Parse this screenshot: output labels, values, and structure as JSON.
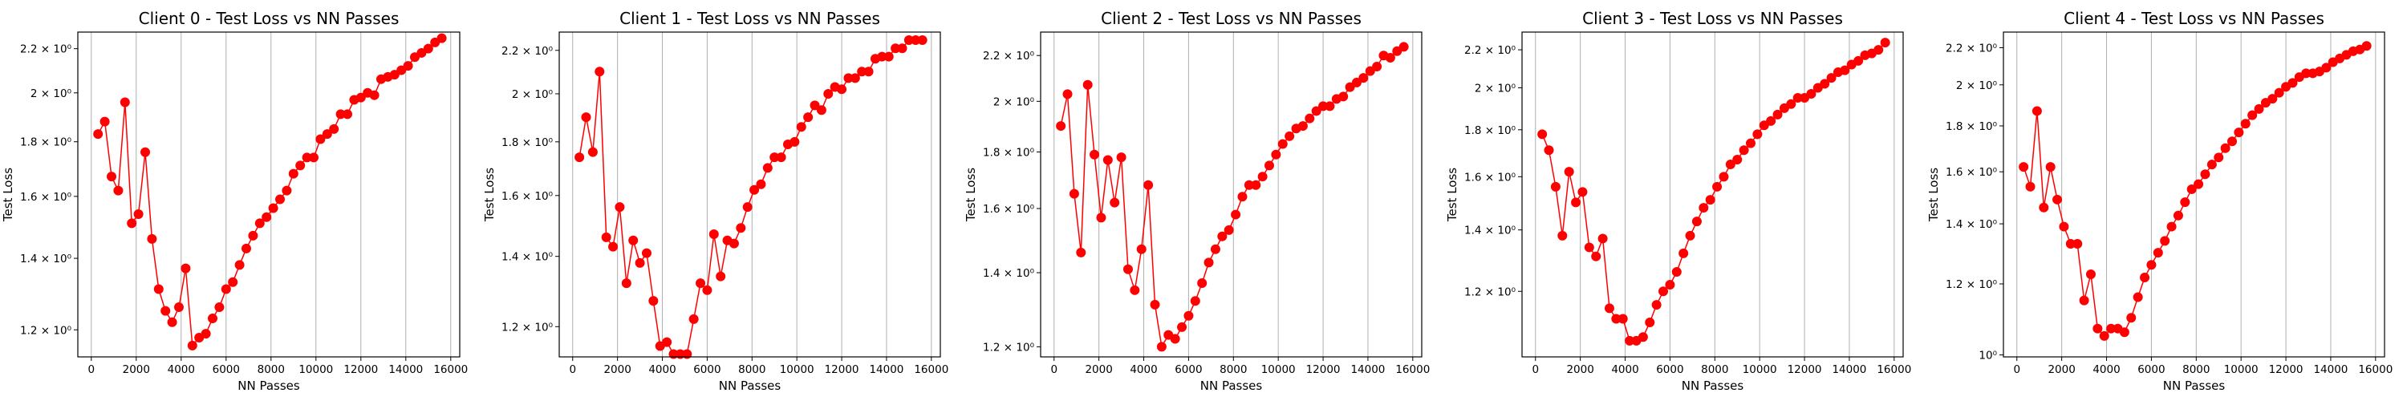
{
  "chart_data": [
    {
      "type": "line",
      "title": "Client 0 - Test Loss vs NN Passes",
      "xlabel": "NN Passes",
      "ylabel": "Test Loss",
      "yscale": "log",
      "grid": "x-only",
      "xlim": [
        -600,
        16400
      ],
      "ylim": [
        1.132,
        2.28
      ],
      "xticks": [
        0,
        2000,
        4000,
        6000,
        8000,
        10000,
        12000,
        14000,
        16000
      ],
      "xtick_labels": [
        "0",
        "2000",
        "4000",
        "6000",
        "8000",
        "10000",
        "12000",
        "14000",
        "16000"
      ],
      "yticks": [
        1.2,
        1.4,
        1.6,
        1.8,
        2.0,
        2.2
      ],
      "ytick_labels": [
        "1.2 × 10⁰",
        "1.4 × 10⁰",
        "1.6 × 10⁰",
        "1.8 × 10⁰",
        "2 × 10⁰",
        "2.2 × 10⁰"
      ],
      "series": [
        {
          "color": "#ff0000",
          "x": [
            300,
            600,
            900,
            1200,
            1500,
            1800,
            2100,
            2400,
            2700,
            3000,
            3300,
            3600,
            3900,
            4200,
            4500,
            4800,
            5100,
            5400,
            5700,
            6000,
            6300,
            6600,
            6900,
            7200,
            7500,
            7800,
            8100,
            8400,
            8700,
            9000,
            9300,
            9600,
            9900,
            10200,
            10500,
            10800,
            11100,
            11400,
            11700,
            12000,
            12300,
            12600,
            12900,
            13200,
            13500,
            13800,
            14100,
            14400,
            14700,
            15000,
            15300,
            15600
          ],
          "y": [
            1.83,
            1.88,
            1.67,
            1.62,
            1.96,
            1.51,
            1.54,
            1.76,
            1.46,
            1.31,
            1.25,
            1.22,
            1.26,
            1.37,
            1.16,
            1.18,
            1.19,
            1.23,
            1.26,
            1.31,
            1.33,
            1.38,
            1.43,
            1.47,
            1.51,
            1.53,
            1.56,
            1.59,
            1.62,
            1.68,
            1.71,
            1.74,
            1.74,
            1.81,
            1.83,
            1.85,
            1.91,
            1.91,
            1.97,
            1.98,
            2.0,
            1.99,
            2.06,
            2.07,
            2.08,
            2.1,
            2.12,
            2.16,
            2.18,
            2.2,
            2.23,
            2.25
          ]
        }
      ]
    },
    {
      "type": "line",
      "title": "Client 1 - Test Loss vs NN Passes",
      "xlabel": "NN Passes",
      "ylabel": "Test Loss",
      "yscale": "log",
      "grid": "x-only",
      "xlim": [
        -600,
        16400
      ],
      "ylim": [
        1.123,
        2.29
      ],
      "xticks": [
        0,
        2000,
        4000,
        6000,
        8000,
        10000,
        12000,
        14000,
        16000
      ],
      "xtick_labels": [
        "0",
        "2000",
        "4000",
        "6000",
        "8000",
        "10000",
        "12000",
        "14000",
        "16000"
      ],
      "yticks": [
        1.2,
        1.4,
        1.6,
        1.8,
        2.0,
        2.2
      ],
      "ytick_labels": [
        "1.2 × 10⁰",
        "1.4 × 10⁰",
        "1.6 × 10⁰",
        "1.8 × 10⁰",
        "2 × 10⁰",
        "2.2 × 10⁰"
      ],
      "series": [
        {
          "color": "#ff0000",
          "x": [
            300,
            600,
            900,
            1200,
            1500,
            1800,
            2100,
            2400,
            2700,
            3000,
            3300,
            3600,
            3900,
            4200,
            4500,
            4800,
            5100,
            5400,
            5700,
            6000,
            6300,
            6600,
            6900,
            7200,
            7500,
            7800,
            8100,
            8400,
            8700,
            9000,
            9300,
            9600,
            9900,
            10200,
            10500,
            10800,
            11100,
            11400,
            11700,
            12000,
            12300,
            12600,
            12900,
            13200,
            13500,
            13800,
            14100,
            14400,
            14700,
            15000,
            15300,
            15600
          ],
          "y": [
            1.74,
            1.9,
            1.76,
            2.1,
            1.46,
            1.43,
            1.56,
            1.32,
            1.45,
            1.38,
            1.41,
            1.27,
            1.15,
            1.16,
            1.13,
            1.13,
            1.13,
            1.22,
            1.32,
            1.3,
            1.47,
            1.34,
            1.45,
            1.44,
            1.49,
            1.56,
            1.62,
            1.64,
            1.7,
            1.74,
            1.74,
            1.79,
            1.8,
            1.86,
            1.9,
            1.95,
            1.93,
            2.0,
            2.03,
            2.02,
            2.07,
            2.07,
            2.1,
            2.1,
            2.16,
            2.17,
            2.17,
            2.21,
            2.21,
            2.25,
            2.25,
            2.25
          ]
        }
      ]
    },
    {
      "type": "line",
      "title": "Client 2 - Test Loss vs NN Passes",
      "xlabel": "NN Passes",
      "ylabel": "Test Loss",
      "yscale": "log",
      "grid": "x-only",
      "xlim": [
        -600,
        16400
      ],
      "ylim": [
        1.175,
        2.31
      ],
      "xticks": [
        0,
        2000,
        4000,
        6000,
        8000,
        10000,
        12000,
        14000,
        16000
      ],
      "xtick_labels": [
        "0",
        "2000",
        "4000",
        "6000",
        "8000",
        "10000",
        "12000",
        "14000",
        "16000"
      ],
      "yticks": [
        1.2,
        1.4,
        1.6,
        1.8,
        2.0,
        2.2
      ],
      "ytick_labels": [
        "1.2 × 10⁰",
        "1.4 × 10⁰",
        "1.6 × 10⁰",
        "1.8 × 10⁰",
        "2 × 10⁰",
        "2.2 × 10⁰"
      ],
      "series": [
        {
          "color": "#ff0000",
          "x": [
            300,
            600,
            900,
            1200,
            1500,
            1800,
            2100,
            2400,
            2700,
            3000,
            3300,
            3600,
            3900,
            4200,
            4500,
            4800,
            5100,
            5400,
            5700,
            6000,
            6300,
            6600,
            6900,
            7200,
            7500,
            7800,
            8100,
            8400,
            8700,
            9000,
            9300,
            9600,
            9900,
            10200,
            10500,
            10800,
            11100,
            11400,
            11700,
            12000,
            12300,
            12600,
            12900,
            13200,
            13500,
            13800,
            14100,
            14400,
            14700,
            15000,
            15300,
            15600
          ],
          "y": [
            1.9,
            2.03,
            1.65,
            1.46,
            2.07,
            1.79,
            1.57,
            1.77,
            1.62,
            1.78,
            1.41,
            1.35,
            1.47,
            1.68,
            1.31,
            1.2,
            1.23,
            1.22,
            1.25,
            1.28,
            1.32,
            1.37,
            1.43,
            1.47,
            1.51,
            1.53,
            1.58,
            1.64,
            1.68,
            1.68,
            1.71,
            1.75,
            1.79,
            1.83,
            1.86,
            1.89,
            1.9,
            1.93,
            1.96,
            1.98,
            1.98,
            2.01,
            2.02,
            2.06,
            2.08,
            2.1,
            2.13,
            2.15,
            2.2,
            2.19,
            2.22,
            2.24
          ]
        }
      ]
    },
    {
      "type": "line",
      "title": "Client 3 - Test Loss vs NN Passes",
      "xlabel": "NN Passes",
      "ylabel": "Test Loss",
      "yscale": "log",
      "grid": "x-only",
      "xlim": [
        -600,
        16400
      ],
      "ylim": [
        1.018,
        2.3
      ],
      "xticks": [
        0,
        2000,
        4000,
        6000,
        8000,
        10000,
        12000,
        14000,
        16000
      ],
      "xtick_labels": [
        "0",
        "2000",
        "4000",
        "6000",
        "8000",
        "10000",
        "12000",
        "14000",
        "16000"
      ],
      "yticks": [
        1.2,
        1.4,
        1.6,
        1.8,
        2.0,
        2.2
      ],
      "ytick_labels": [
        "1.2 × 10⁰",
        "1.4 × 10⁰",
        "1.6 × 10⁰",
        "1.8 × 10⁰",
        "2 × 10⁰",
        "2.2 × 10⁰"
      ],
      "series": [
        {
          "color": "#ff0000",
          "x": [
            300,
            600,
            900,
            1200,
            1500,
            1800,
            2100,
            2400,
            2700,
            3000,
            3300,
            3600,
            3900,
            4200,
            4500,
            4800,
            5100,
            5400,
            5700,
            6000,
            6300,
            6600,
            6900,
            7200,
            7500,
            7800,
            8100,
            8400,
            8700,
            9000,
            9300,
            9600,
            9900,
            10200,
            10500,
            10800,
            11100,
            11400,
            11700,
            12000,
            12300,
            12600,
            12900,
            13200,
            13500,
            13800,
            14100,
            14400,
            14700,
            15000,
            15300,
            15600
          ],
          "y": [
            1.78,
            1.71,
            1.56,
            1.38,
            1.62,
            1.5,
            1.54,
            1.34,
            1.31,
            1.37,
            1.15,
            1.12,
            1.12,
            1.06,
            1.06,
            1.07,
            1.11,
            1.16,
            1.2,
            1.22,
            1.26,
            1.32,
            1.38,
            1.43,
            1.48,
            1.51,
            1.56,
            1.6,
            1.65,
            1.67,
            1.71,
            1.74,
            1.78,
            1.82,
            1.84,
            1.87,
            1.9,
            1.92,
            1.95,
            1.95,
            1.97,
            2.0,
            2.02,
            2.05,
            2.08,
            2.09,
            2.12,
            2.14,
            2.17,
            2.18,
            2.2,
            2.24
          ]
        }
      ]
    },
    {
      "type": "line",
      "title": "Client 4 - Test Loss vs NN Passes",
      "xlabel": "NN Passes",
      "ylabel": "Test Loss",
      "yscale": "log",
      "grid": "x-only",
      "xlim": [
        -600,
        16400
      ],
      "ylim": [
        0.995,
        2.29
      ],
      "xticks": [
        0,
        2000,
        4000,
        6000,
        8000,
        10000,
        12000,
        14000,
        16000
      ],
      "xtick_labels": [
        "0",
        "2000",
        "4000",
        "6000",
        "8000",
        "10000",
        "12000",
        "14000",
        "16000"
      ],
      "yticks": [
        1.0,
        1.2,
        1.4,
        1.6,
        1.8,
        2.0,
        2.2
      ],
      "ytick_labels": [
        "10⁰",
        "1.2 × 10⁰",
        "1.4 × 10⁰",
        "1.6 × 10⁰",
        "1.8 × 10⁰",
        "2 × 10⁰",
        "2.2 × 10⁰"
      ],
      "series": [
        {
          "color": "#ff0000",
          "x": [
            300,
            600,
            900,
            1200,
            1500,
            1800,
            2100,
            2400,
            2700,
            3000,
            3300,
            3600,
            3900,
            4200,
            4500,
            4800,
            5100,
            5400,
            5700,
            6000,
            6300,
            6600,
            6900,
            7200,
            7500,
            7800,
            8100,
            8400,
            8700,
            9000,
            9300,
            9600,
            9900,
            10200,
            10500,
            10800,
            11100,
            11400,
            11700,
            12000,
            12300,
            12600,
            12900,
            13200,
            13500,
            13800,
            14100,
            14400,
            14700,
            15000,
            15300,
            15600
          ],
          "y": [
            1.62,
            1.54,
            1.87,
            1.46,
            1.62,
            1.49,
            1.39,
            1.33,
            1.33,
            1.15,
            1.23,
            1.07,
            1.05,
            1.07,
            1.07,
            1.06,
            1.1,
            1.16,
            1.22,
            1.26,
            1.3,
            1.34,
            1.39,
            1.43,
            1.48,
            1.53,
            1.55,
            1.59,
            1.63,
            1.66,
            1.7,
            1.73,
            1.77,
            1.81,
            1.85,
            1.88,
            1.91,
            1.93,
            1.96,
            1.99,
            2.01,
            2.04,
            2.06,
            2.06,
            2.07,
            2.09,
            2.12,
            2.14,
            2.16,
            2.18,
            2.19,
            2.21
          ]
        }
      ]
    }
  ]
}
